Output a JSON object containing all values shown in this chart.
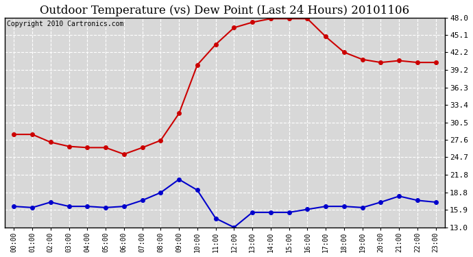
{
  "title": "Outdoor Temperature (vs) Dew Point (Last 24 Hours) 20101106",
  "copyright": "Copyright 2010 Cartronics.com",
  "hours": [
    "00:00",
    "01:00",
    "02:00",
    "03:00",
    "04:00",
    "05:00",
    "06:00",
    "07:00",
    "08:00",
    "09:00",
    "10:00",
    "11:00",
    "12:00",
    "13:00",
    "14:00",
    "15:00",
    "16:00",
    "17:00",
    "18:00",
    "19:00",
    "20:00",
    "21:00",
    "22:00",
    "23:00"
  ],
  "temp": [
    28.5,
    28.5,
    27.2,
    26.5,
    26.3,
    26.3,
    25.2,
    26.3,
    27.5,
    32.0,
    40.1,
    43.5,
    46.3,
    47.2,
    47.8,
    47.8,
    47.8,
    44.8,
    42.2,
    41.0,
    40.5,
    40.8,
    40.5,
    40.5
  ],
  "dew": [
    16.5,
    16.3,
    17.2,
    16.5,
    16.5,
    16.3,
    16.5,
    17.5,
    18.8,
    21.0,
    19.2,
    14.5,
    13.0,
    15.5,
    15.5,
    15.5,
    16.0,
    16.5,
    16.5,
    16.3,
    17.2,
    18.2,
    17.5,
    17.2
  ],
  "temp_color": "#cc0000",
  "dew_color": "#0000cc",
  "bg_color": "#ffffff",
  "plot_bg_color": "#d8d8d8",
  "grid_color": "#ffffff",
  "yticks": [
    13.0,
    15.9,
    18.8,
    21.8,
    24.7,
    27.6,
    30.5,
    33.4,
    36.3,
    39.2,
    42.2,
    45.1,
    48.0
  ],
  "ymin": 13.0,
  "ymax": 48.0,
  "title_fontsize": 12,
  "copyright_fontsize": 7,
  "markersize": 4,
  "linewidth": 1.5
}
